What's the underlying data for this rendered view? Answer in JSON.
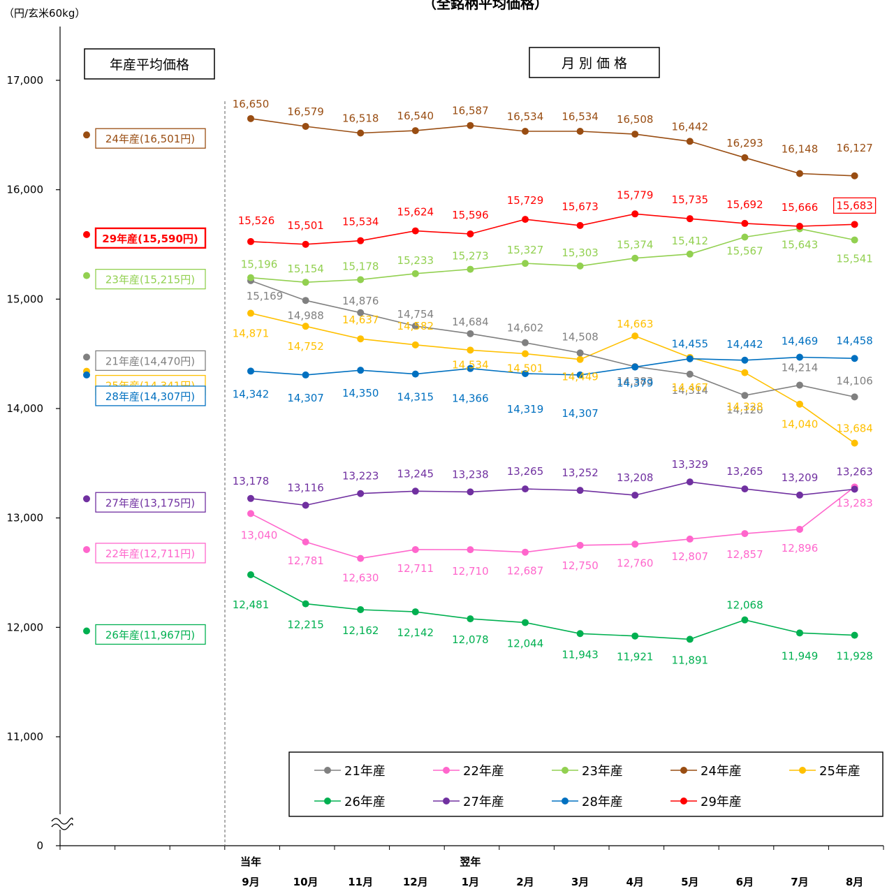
{
  "chart_data": {
    "type": "line",
    "title": "（全銘柄平均価格）",
    "unit_label": "（円/玄米60kg）",
    "section_labels": {
      "annual": "年産平均価格",
      "monthly": "月 別 価 格"
    },
    "y_ticks": [
      "0",
      "11,000",
      "12,000",
      "13,000",
      "14,000",
      "15,000",
      "16,000",
      "17,000"
    ],
    "ylim": [
      11000,
      17000
    ],
    "axis_break": true,
    "x_year_labels": [
      "当年",
      "翌年"
    ],
    "categories": [
      "9月",
      "10月",
      "11月",
      "12月",
      "1月",
      "2月",
      "3月",
      "4月",
      "5月",
      "6月",
      "7月",
      "8月"
    ],
    "legend_position": "bottom-right",
    "series": [
      {
        "name": "21年産",
        "color": "#808080",
        "annual_label": "21年産(14,470円)",
        "annual_value": 14470,
        "values": [
          15169,
          14988,
          14876,
          14754,
          14684,
          14602,
          14508,
          14383,
          14314,
          14120,
          14214,
          14106
        ],
        "labels": [
          "15,169",
          "14,988",
          "14,876",
          "14,754",
          "14,684",
          "14,602",
          "14,508",
          "14,383",
          "14,314",
          "14,120",
          "14,214",
          "14,106"
        ]
      },
      {
        "name": "22年産",
        "color": "#FF66CC",
        "annual_label": "22年産(12,711円)",
        "annual_value": 12711,
        "values": [
          13040,
          12781,
          12630,
          12711,
          12710,
          12687,
          12750,
          12760,
          12807,
          12857,
          12896,
          13283
        ],
        "labels": [
          "13,040",
          "12,781",
          "12,630",
          "12,711",
          "12,710",
          "12,687",
          "12,750",
          "12,760",
          "12,807",
          "12,857",
          "12,896",
          "13,283"
        ]
      },
      {
        "name": "23年産",
        "color": "#92D050",
        "annual_label": "23年産(15,215円)",
        "annual_value": 15215,
        "values": [
          15196,
          15154,
          15178,
          15233,
          15273,
          15327,
          15303,
          15374,
          15412,
          15567,
          15643,
          15541
        ],
        "labels": [
          "15,196",
          "15,154",
          "15,178",
          "15,233",
          "15,273",
          "15,327",
          "15,303",
          "15,374",
          "15,412",
          "15,567",
          "15,643",
          "15,541"
        ]
      },
      {
        "name": "24年産",
        "color": "#994D12",
        "annual_label": "24年産(16,501円)",
        "annual_value": 16501,
        "values": [
          16650,
          16579,
          16518,
          16540,
          16587,
          16534,
          16534,
          16508,
          16442,
          16293,
          16148,
          16127
        ],
        "labels": [
          "16,650",
          "16,579",
          "16,518",
          "16,540",
          "16,587",
          "16,534",
          "16,534",
          "16,508",
          "16,442",
          "16,293",
          "16,148",
          "16,127"
        ]
      },
      {
        "name": "25年産",
        "color": "#FFC000",
        "annual_label": "25年産(14,341円)",
        "annual_value": 14341,
        "values": [
          14871,
          14752,
          14637,
          14582,
          14534,
          14501,
          14449,
          14663,
          14467,
          14328,
          14040,
          13684
        ],
        "labels": [
          "14,871",
          "14,752",
          "14,637",
          "14,582",
          "14,534",
          "14,501",
          "14,449",
          "14,663",
          "14,467",
          "14,328",
          "14,040",
          "13,684"
        ]
      },
      {
        "name": "26年産",
        "color": "#00B050",
        "annual_label": "26年産(11,967円)",
        "annual_value": 11967,
        "values": [
          12481,
          12215,
          12162,
          12142,
          12078,
          12044,
          11943,
          11921,
          11891,
          12068,
          11949,
          11928
        ],
        "labels": [
          "12,481",
          "12,215",
          "12,162",
          "12,142",
          "12,078",
          "12,044",
          "11,943",
          "11,921",
          "11,891",
          "12,068",
          "11,949",
          "11,928"
        ]
      },
      {
        "name": "27年産",
        "color": "#7030A0",
        "annual_label": "27年産(13,175円)",
        "annual_value": 13175,
        "values": [
          13178,
          13116,
          13223,
          13245,
          13238,
          13265,
          13252,
          13208,
          13329,
          13265,
          13209,
          13263
        ],
        "labels": [
          "13,178",
          "13,116",
          "13,223",
          "13,245",
          "13,238",
          "13,265",
          "13,252",
          "13,208",
          "13,329",
          "13,265",
          "13,209",
          "13,263"
        ]
      },
      {
        "name": "28年産",
        "color": "#0070C0",
        "annual_label": "28年産(14,307円)",
        "annual_value": 14307,
        "values": [
          14342,
          14307,
          14350,
          14315,
          14366,
          14319,
          14307,
          14379,
          14455,
          14442,
          14469,
          14458
        ],
        "labels": [
          "14,342",
          "14,307",
          "14,350",
          "14,315",
          "14,366",
          "14,319",
          "14,307",
          "14,379",
          "14,455",
          "14,442",
          "14,469",
          "14,458"
        ]
      },
      {
        "name": "29年産",
        "color": "#FF0000",
        "annual_label": "29年産(15,590円)",
        "annual_value": 15590,
        "values": [
          15526,
          15501,
          15534,
          15624,
          15596,
          15729,
          15673,
          15779,
          15735,
          15692,
          15666,
          15683
        ],
        "labels": [
          "15,526",
          "15,501",
          "15,534",
          "15,624",
          "15,596",
          "15,729",
          "15,673",
          "15,779",
          "15,735",
          "15,692",
          "15,666",
          "15,683"
        ]
      }
    ]
  }
}
